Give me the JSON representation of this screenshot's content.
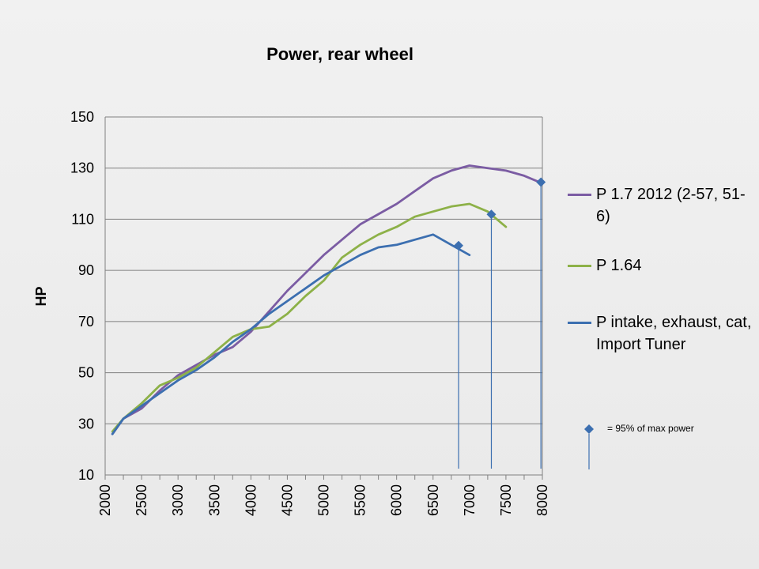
{
  "chart_data": {
    "type": "line",
    "title": "Power, rear wheel",
    "xlabel": "",
    "ylabel": "HP",
    "xlim": [
      2000,
      8000
    ],
    "ylim": [
      10,
      150
    ],
    "yticks": [
      10,
      30,
      50,
      70,
      90,
      110,
      130,
      150
    ],
    "xticks": [
      "2000",
      "2500",
      "3000",
      "3500",
      "4000",
      "4500",
      "5000",
      "5500",
      "6000",
      "6500",
      "7000",
      "7500",
      "8000"
    ],
    "grid": "horizontal",
    "legend_position": "right",
    "series": [
      {
        "name": "P 1.7 2012 (2-57, 51-6)",
        "color": "#7b5ca3",
        "x": [
          2100,
          2250,
          2500,
          2750,
          3000,
          3250,
          3500,
          3750,
          4000,
          4250,
          4500,
          4750,
          5000,
          5250,
          5500,
          5750,
          6000,
          6250,
          6500,
          6750,
          7000,
          7250,
          7500,
          7750,
          8000
        ],
        "y": [
          26,
          32,
          36,
          43,
          49,
          53,
          57,
          60,
          66,
          74,
          82,
          89,
          96,
          102,
          108,
          112,
          116,
          121,
          126,
          129,
          131,
          130,
          129,
          127,
          124
        ]
      },
      {
        "name": "P 1.64",
        "color": "#8db148",
        "x": [
          2100,
          2250,
          2500,
          2750,
          3000,
          3250,
          3500,
          3750,
          4000,
          4250,
          4500,
          4750,
          5000,
          5250,
          5500,
          5750,
          6000,
          6250,
          6500,
          6750,
          7000,
          7250,
          7500
        ],
        "y": [
          27,
          32,
          38,
          45,
          48,
          52,
          58,
          64,
          67,
          68,
          73,
          80,
          86,
          95,
          100,
          104,
          107,
          111,
          113,
          115,
          116,
          113,
          107
        ]
      },
      {
        "name": "P intake, exhaust, cat, Import Tuner",
        "color": "#3c6fb0",
        "x": [
          2100,
          2250,
          2500,
          2750,
          3000,
          3250,
          3500,
          3750,
          4000,
          4250,
          4500,
          4750,
          5000,
          5250,
          5500,
          5750,
          6000,
          6250,
          6500,
          6750,
          7000
        ],
        "y": [
          26,
          32,
          37,
          42,
          47,
          51,
          56,
          62,
          67,
          73,
          78,
          83,
          88,
          92,
          96,
          99,
          100,
          102,
          104,
          100,
          96
        ]
      }
    ],
    "markers_95pct": [
      {
        "series": "P intake, exhaust, cat, Import Tuner",
        "x": 6850,
        "y": 99.7
      },
      {
        "series": "P 1.64",
        "x": 7300,
        "y": 111.9
      },
      {
        "series": "P 1.7 2012 (2-57, 51-6)",
        "x": 7980,
        "y": 124.5
      }
    ],
    "marker_legend": "= 95%  of max power"
  },
  "legend": {
    "items": [
      {
        "label": "P 1.7 2012 (2-57, 51-6)",
        "color": "#7b5ca3"
      },
      {
        "label": "P 1.64",
        "color": "#8db148"
      },
      {
        "label": "P intake, exhaust, cat, Import Tuner",
        "color": "#3c6fb0"
      }
    ],
    "marker_note": "= 95%  of max power"
  },
  "colors": {
    "marker": "#3c6fb0",
    "grid": "#808080",
    "axis": "#808080"
  }
}
